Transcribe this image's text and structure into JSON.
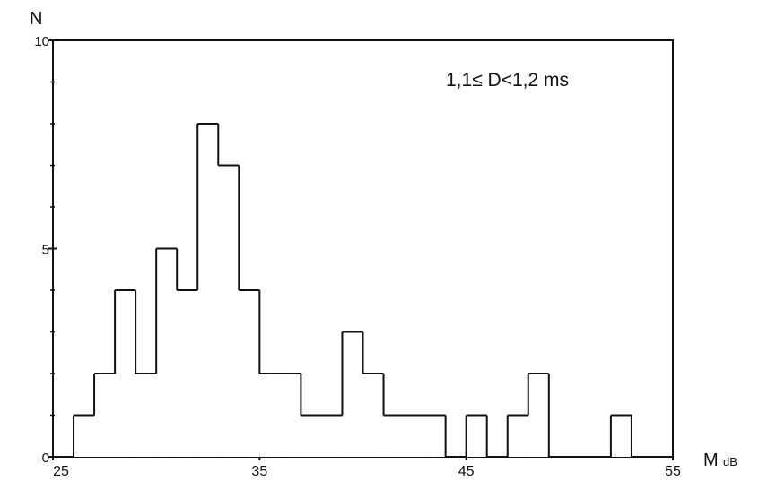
{
  "chart_data": {
    "type": "bar",
    "xlabel_main": "M",
    "xlabel_unit": "dB",
    "ylabel": "N",
    "annotation": "1,1≤ D<1,2 ms",
    "xlim": [
      25,
      55
    ],
    "ylim": [
      0,
      10
    ],
    "x_ticks": [
      {
        "value": 25,
        "label": "25"
      },
      {
        "value": 35,
        "label": "35"
      },
      {
        "value": 45,
        "label": "45"
      },
      {
        "value": 55,
        "label": "55"
      }
    ],
    "y_ticks": [
      {
        "value": 0,
        "label": "0"
      },
      {
        "value": 5,
        "label": "5"
      },
      {
        "value": 10,
        "label": "10"
      }
    ],
    "y_minor_ticks": [
      1,
      2,
      3,
      4,
      6,
      7,
      8,
      9
    ],
    "bin_width": 1,
    "bins": [
      {
        "x": 26,
        "value": 1
      },
      {
        "x": 27,
        "value": 2
      },
      {
        "x": 28,
        "value": 4
      },
      {
        "x": 29,
        "value": 2
      },
      {
        "x": 30,
        "value": 5
      },
      {
        "x": 31,
        "value": 4
      },
      {
        "x": 32,
        "value": 8
      },
      {
        "x": 33,
        "value": 7
      },
      {
        "x": 34,
        "value": 4
      },
      {
        "x": 35,
        "value": 2
      },
      {
        "x": 36,
        "value": 2
      },
      {
        "x": 37,
        "value": 1
      },
      {
        "x": 38,
        "value": 1
      },
      {
        "x": 39,
        "value": 3
      },
      {
        "x": 40,
        "value": 2
      },
      {
        "x": 41,
        "value": 1
      },
      {
        "x": 42,
        "value": 1
      },
      {
        "x": 43,
        "value": 1
      },
      {
        "x": 44,
        "value": 0
      },
      {
        "x": 45,
        "value": 1
      },
      {
        "x": 46,
        "value": 0
      },
      {
        "x": 47,
        "value": 1
      },
      {
        "x": 48,
        "value": 2
      },
      {
        "x": 49,
        "value": 0
      },
      {
        "x": 50,
        "value": 0
      },
      {
        "x": 51,
        "value": 0
      },
      {
        "x": 52,
        "value": 1
      }
    ],
    "grid": false,
    "legend": "none",
    "colors": {
      "line": "#111111",
      "background": "#ffffff"
    }
  }
}
